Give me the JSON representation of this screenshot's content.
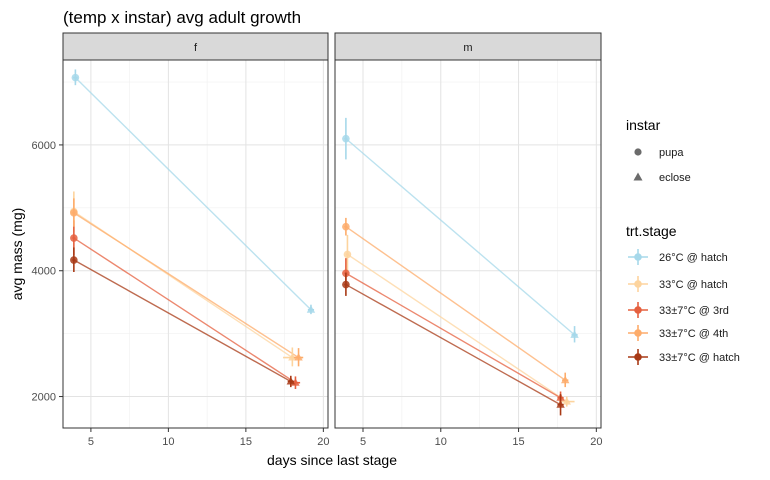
{
  "chart_data": {
    "type": "line",
    "title": "(temp x instar) avg adult growth",
    "xlabel": "days since last stage",
    "ylabel": "avg mass (mg)",
    "xlim": [
      3.2,
      20.3
    ],
    "ylim": [
      1500,
      7350
    ],
    "x_ticks": [
      5,
      10,
      15,
      20
    ],
    "y_ticks": [
      2000,
      4000,
      6000
    ],
    "facets": [
      "f",
      "m"
    ],
    "legend_instar": {
      "title": "instar",
      "items": [
        {
          "label": "pupa",
          "shape": "circle"
        },
        {
          "label": "eclose",
          "shape": "triangle"
        }
      ]
    },
    "legend_trt": {
      "title": "trt.stage",
      "items": [
        {
          "label": "26°C @ hatch",
          "color": "#a6d8ea"
        },
        {
          "label": "33°C @ hatch",
          "color": "#fdd49e"
        },
        {
          "label": "33±7°C @ 3rd",
          "color": "#e5603f"
        },
        {
          "label": "33±7°C @ 4th",
          "color": "#fdac6b"
        },
        {
          "label": "33±7°C @ hatch",
          "color": "#a83a16"
        }
      ]
    },
    "panels": [
      {
        "facet": "f",
        "series": [
          {
            "name": "26°C @ hatch",
            "color": "#a6d8ea",
            "pupa": {
              "x": 4.0,
              "y": 7070,
              "ylo": 6950,
              "yhi": 7200,
              "xlo": 3.85,
              "xhi": 4.15
            },
            "eclose": {
              "x": 19.2,
              "y": 3380,
              "ylo": 3310,
              "yhi": 3460,
              "xlo": 19.0,
              "xhi": 19.4
            }
          },
          {
            "name": "33°C @ hatch",
            "color": "#fdd49e",
            "pupa": {
              "x": 3.9,
              "y": 4940,
              "ylo": 4620,
              "yhi": 5260,
              "xlo": 3.8,
              "xhi": 4.0
            },
            "eclose": {
              "x": 18.0,
              "y": 2620,
              "ylo": 2480,
              "yhi": 2780,
              "xlo": 17.4,
              "xhi": 18.6
            }
          },
          {
            "name": "33±7°C @ 3rd",
            "color": "#e5603f",
            "pupa": {
              "x": 3.9,
              "y": 4520,
              "ylo": 4250,
              "yhi": 4800,
              "xlo": 3.8,
              "xhi": 4.0
            },
            "eclose": {
              "x": 18.2,
              "y": 2220,
              "ylo": 2120,
              "yhi": 2320,
              "xlo": 17.9,
              "xhi": 18.5
            }
          },
          {
            "name": "33±7°C @ 4th",
            "color": "#fdac6b",
            "pupa": {
              "x": 3.9,
              "y": 4920,
              "ylo": 4700,
              "yhi": 5150,
              "xlo": 3.8,
              "xhi": 4.0
            },
            "eclose": {
              "x": 18.4,
              "y": 2620,
              "ylo": 2480,
              "yhi": 2770,
              "xlo": 18.1,
              "xhi": 18.7
            }
          },
          {
            "name": "33±7°C @ hatch",
            "color": "#a83a16",
            "pupa": {
              "x": 3.9,
              "y": 4170,
              "ylo": 3980,
              "yhi": 4370,
              "xlo": 3.8,
              "xhi": 4.0
            },
            "eclose": {
              "x": 17.9,
              "y": 2240,
              "ylo": 2150,
              "yhi": 2330,
              "xlo": 17.7,
              "xhi": 18.1
            }
          }
        ]
      },
      {
        "facet": "m",
        "series": [
          {
            "name": "26°C @ hatch",
            "color": "#a6d8ea",
            "pupa": {
              "x": 3.9,
              "y": 6100,
              "ylo": 5770,
              "yhi": 6430,
              "xlo": 3.8,
              "xhi": 4.0
            },
            "eclose": {
              "x": 18.6,
              "y": 2980,
              "ylo": 2860,
              "yhi": 3120,
              "xlo": 18.4,
              "xhi": 18.8
            }
          },
          {
            "name": "33°C @ hatch",
            "color": "#fdd49e",
            "pupa": {
              "x": 4.0,
              "y": 4260,
              "ylo": 3950,
              "yhi": 4570,
              "xlo": 3.9,
              "xhi": 4.1
            },
            "eclose": {
              "x": 18.1,
              "y": 1920,
              "ylo": 1840,
              "yhi": 2000,
              "xlo": 17.6,
              "xhi": 18.6
            }
          },
          {
            "name": "33±7°C @ 3rd",
            "color": "#e5603f",
            "pupa": {
              "x": 3.9,
              "y": 3960,
              "ylo": 3720,
              "yhi": 4200,
              "xlo": 3.8,
              "xhi": 4.0
            },
            "eclose": {
              "x": 17.7,
              "y": 1980,
              "ylo": 1890,
              "yhi": 2080,
              "xlo": 17.5,
              "xhi": 17.9
            }
          },
          {
            "name": "33±7°C @ 4th",
            "color": "#fdac6b",
            "pupa": {
              "x": 3.9,
              "y": 4700,
              "ylo": 4560,
              "yhi": 4840,
              "xlo": 3.8,
              "xhi": 4.0
            },
            "eclose": {
              "x": 18.0,
              "y": 2260,
              "ylo": 2150,
              "yhi": 2380,
              "xlo": 17.8,
              "xhi": 18.2
            }
          },
          {
            "name": "33±7°C @ hatch",
            "color": "#a83a16",
            "pupa": {
              "x": 3.9,
              "y": 3780,
              "ylo": 3600,
              "yhi": 3970,
              "xlo": 3.8,
              "xhi": 4.0
            },
            "eclose": {
              "x": 17.7,
              "y": 1870,
              "ylo": 1700,
              "yhi": 2040,
              "xlo": 17.5,
              "xhi": 17.9
            }
          }
        ]
      }
    ]
  }
}
